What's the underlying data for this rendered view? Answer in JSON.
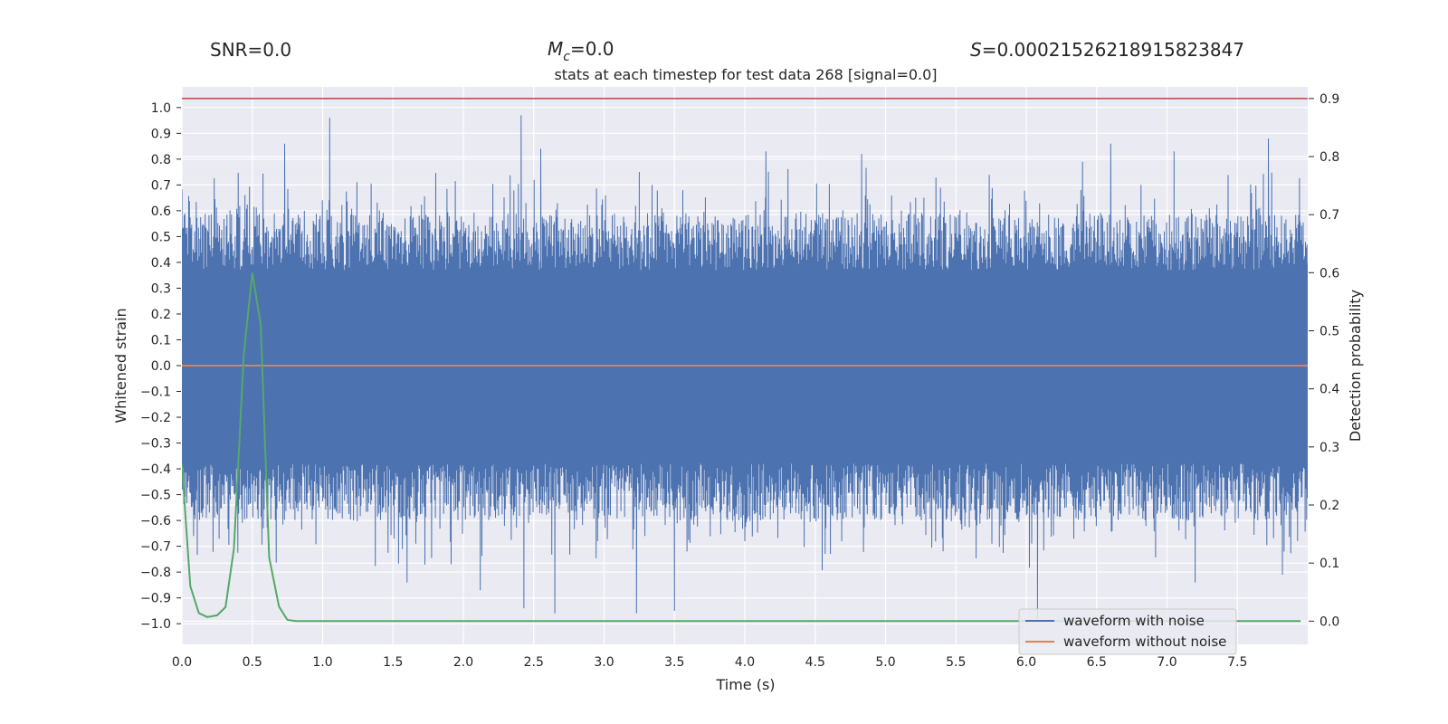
{
  "header": {
    "snr_text": "SNR=0.0",
    "mc_symbol": "M",
    "mc_subscript": "c",
    "mc_value": "=0.0",
    "s_symbol": "S",
    "s_value": "=0.00021526218915823847"
  },
  "chart_data": {
    "type": "line",
    "title": "stats at each timestep for test data 268 [signal=0.0]",
    "xlabel": "Time (s)",
    "ylabel_left": "Whitened strain",
    "ylabel_right": "Detection probability",
    "xlim": [
      0.0,
      8.0
    ],
    "ylim_left": [
      -1.08,
      1.08
    ],
    "ylim_right": [
      -0.04,
      0.92
    ],
    "x_ticks": [
      0.0,
      0.5,
      1.0,
      1.5,
      2.0,
      2.5,
      3.0,
      3.5,
      4.0,
      4.5,
      5.0,
      5.5,
      6.0,
      6.5,
      7.0,
      7.5
    ],
    "x_tick_labels": [
      "0.0",
      "0.5",
      "1.0",
      "1.5",
      "2.0",
      "2.5",
      "3.0",
      "3.5",
      "4.0",
      "4.5",
      "5.0",
      "5.5",
      "6.0",
      "6.5",
      "7.0",
      "7.5"
    ],
    "y_ticks_left": [
      1.0,
      0.9,
      0.8,
      0.7,
      0.6,
      0.5,
      0.4,
      0.3,
      0.2,
      0.1,
      0.0,
      -0.1,
      -0.2,
      -0.3,
      -0.4,
      -0.5,
      -0.6,
      -0.7,
      -0.8,
      -0.9,
      -1.0
    ],
    "y_tick_labels_left": [
      "1.0",
      "0.9",
      "0.8",
      "0.7",
      "0.6",
      "0.5",
      "0.4",
      "0.3",
      "0.2",
      "0.1",
      "0.0",
      "−0.1",
      "−0.2",
      "−0.3",
      "−0.4",
      "−0.5",
      "−0.6",
      "−0.7",
      "−0.8",
      "−0.9",
      "−1.0"
    ],
    "y_ticks_right": [
      0.9,
      0.8,
      0.7,
      0.6,
      0.5,
      0.4,
      0.3,
      0.2,
      0.1,
      0.0
    ],
    "y_tick_labels_right": [
      "0.9",
      "0.8",
      "0.7",
      "0.6",
      "0.5",
      "0.4",
      "0.3",
      "0.2",
      "0.1",
      "0.0"
    ],
    "threshold": {
      "axis": "right",
      "value": 0.9,
      "color": "#c44e52"
    },
    "series": [
      {
        "name": "waveform with noise",
        "axis": "left",
        "color": "#4c72b0",
        "kind": "noise",
        "sample_count": 1500,
        "core_range": [
          -0.38,
          0.37
        ],
        "notable_peaks": [
          {
            "x": 0.73,
            "y": 0.86
          },
          {
            "x": 1.05,
            "y": 0.96
          },
          {
            "x": 2.41,
            "y": 0.97
          },
          {
            "x": 2.55,
            "y": 0.84
          },
          {
            "x": 3.25,
            "y": 0.75
          },
          {
            "x": 4.15,
            "y": 0.83
          },
          {
            "x": 4.83,
            "y": 0.82
          },
          {
            "x": 6.4,
            "y": 0.79
          },
          {
            "x": 6.6,
            "y": 0.86
          },
          {
            "x": 7.05,
            "y": 0.83
          },
          {
            "x": 7.72,
            "y": 0.88
          }
        ],
        "notable_troughs": [
          {
            "x": 1.6,
            "y": -0.84
          },
          {
            "x": 2.12,
            "y": -0.87
          },
          {
            "x": 2.43,
            "y": -0.94
          },
          {
            "x": 2.65,
            "y": -0.96
          },
          {
            "x": 3.23,
            "y": -0.96
          },
          {
            "x": 3.5,
            "y": -0.95
          },
          {
            "x": 6.08,
            "y": -0.98
          },
          {
            "x": 7.2,
            "y": -0.84
          },
          {
            "x": 7.82,
            "y": -0.81
          }
        ]
      },
      {
        "name": "waveform without noise",
        "axis": "left",
        "color": "#dd8452",
        "x": [
          0.0,
          8.0
        ],
        "y": [
          0.0,
          0.0
        ]
      },
      {
        "name": "detection probability",
        "axis": "right",
        "color": "#55a868",
        "x": [
          0.0,
          0.06,
          0.12,
          0.18,
          0.25,
          0.31,
          0.37,
          0.44,
          0.5,
          0.56,
          0.62,
          0.69,
          0.75,
          0.81,
          0.87,
          1.0,
          2.0,
          3.0,
          4.0,
          5.0,
          6.0,
          7.0,
          7.95
        ],
        "y": [
          0.27,
          0.06,
          0.014,
          0.007,
          0.01,
          0.024,
          0.125,
          0.46,
          0.6,
          0.51,
          0.11,
          0.025,
          0.002,
          0.0,
          0.0,
          0.0,
          0.0,
          0.0,
          0.0,
          0.0,
          0.0,
          0.0,
          0.0
        ]
      }
    ],
    "legend": {
      "position": "lower-right",
      "entries": [
        {
          "label": "waveform with noise",
          "color": "#4c72b0"
        },
        {
          "label": "waveform without noise",
          "color": "#dd8452"
        }
      ]
    },
    "style": {
      "background": "#eaeaf2",
      "grid": true,
      "grid_color": "#ffffff"
    }
  }
}
